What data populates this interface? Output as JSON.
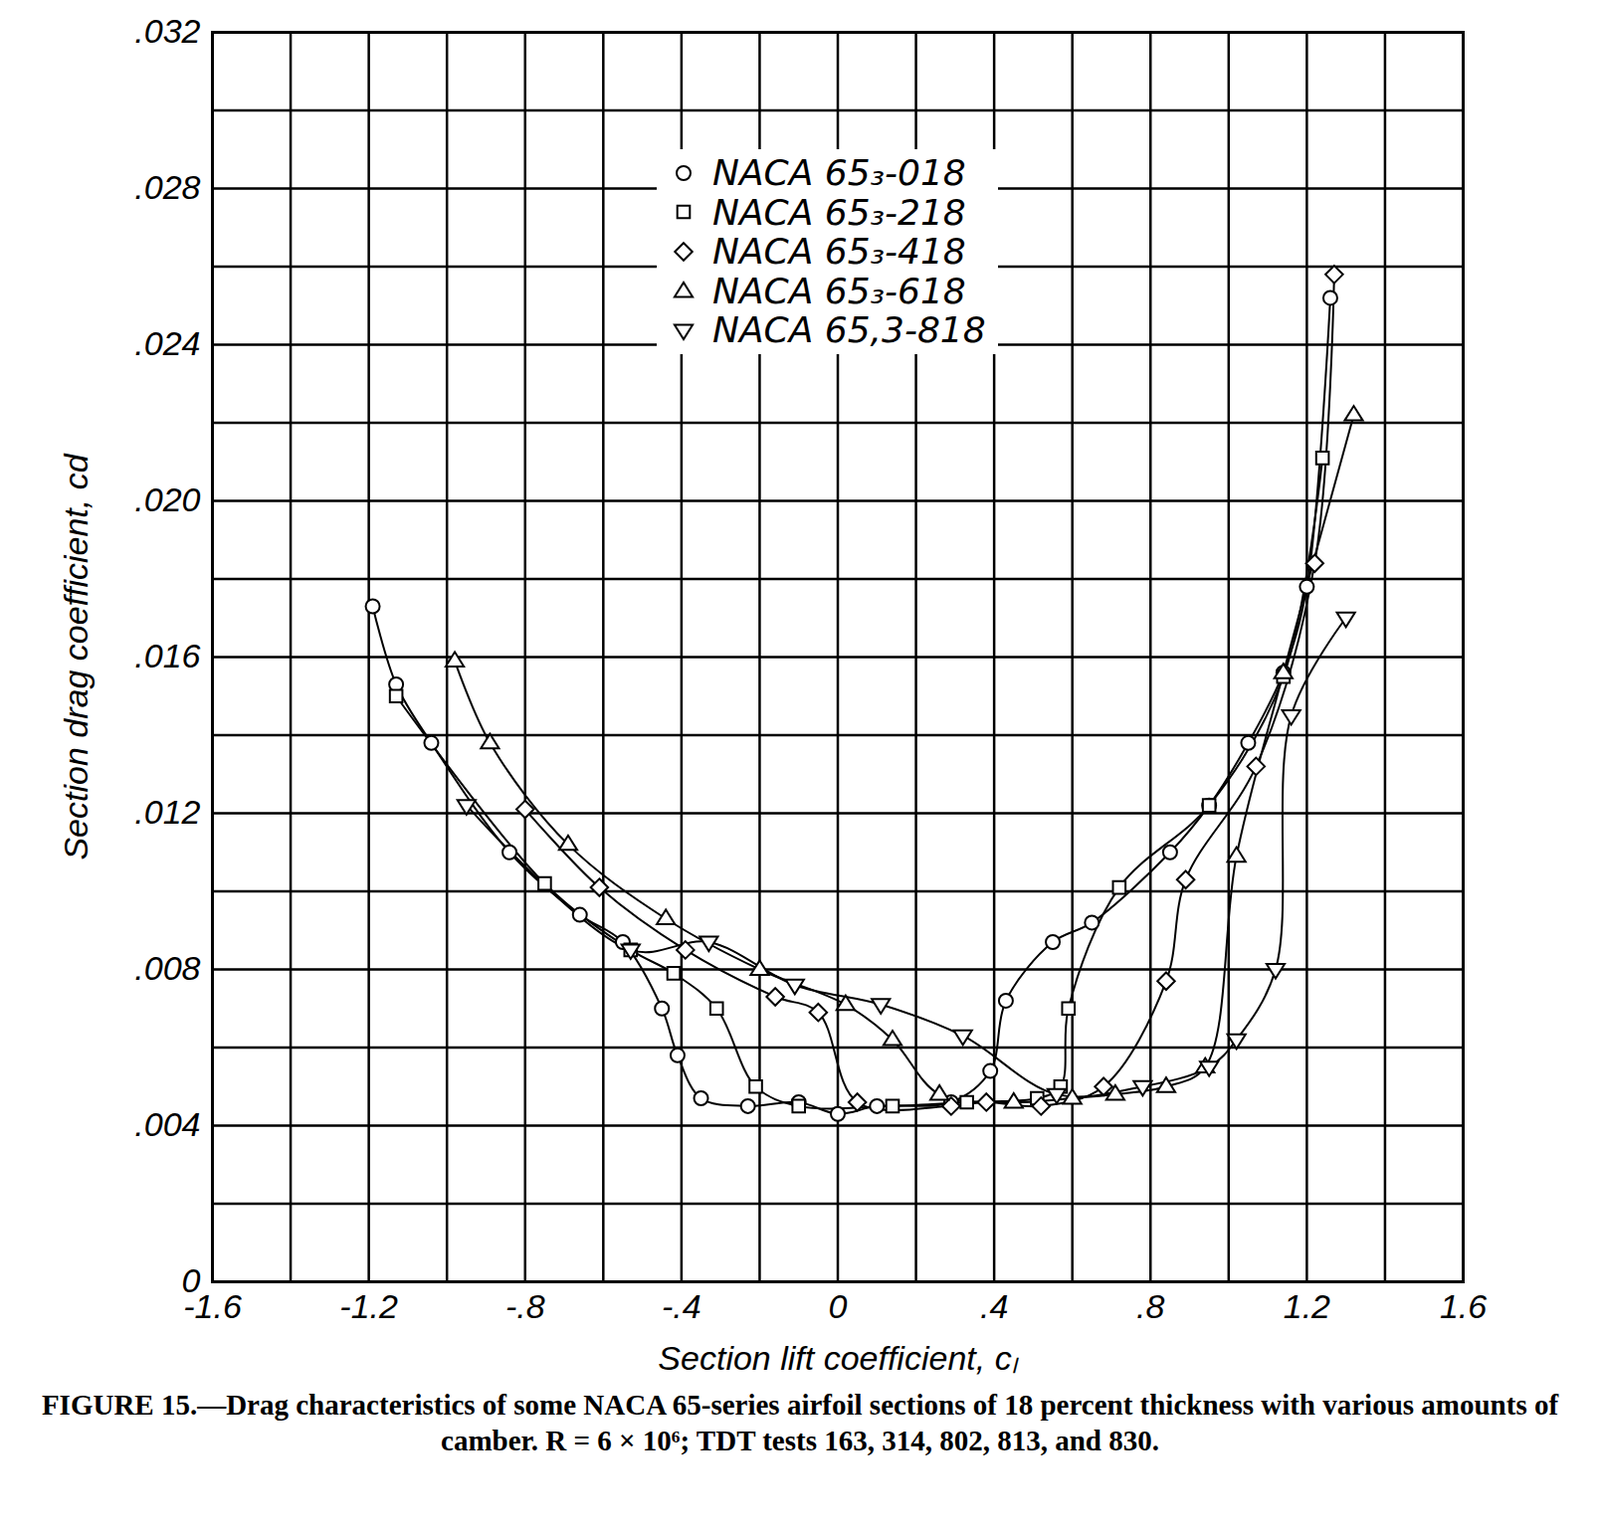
{
  "chart_data": {
    "type": "line",
    "title": "FIGURE 15.—Drag characteristics of some NACA 65-series airfoil sections of 18 percent thickness with various amounts of camber.  R = 6 × 10⁶; TDT tests 163, 314, 802, 813, and 830.",
    "xlabel": "Section lift coefficient, cₗ",
    "ylabel": "Section drag coefficient, cd",
    "xlim": [
      -1.6,
      1.6
    ],
    "xticks": [
      -1.6,
      -1.2,
      {
        "value": -0.8,
        "label": "-.8"
      },
      {
        "value": -0.4,
        "label": "-.4"
      },
      0,
      {
        "value": 0.4,
        "label": ".4"
      },
      {
        "value": 0.8,
        "label": ".8"
      },
      1.2,
      1.6
    ],
    "ylim": [
      0,
      0.032
    ],
    "yticks": [
      0,
      {
        "value": 0.004,
        "label": ".004"
      },
      {
        "value": 0.008,
        "label": ".008"
      },
      {
        "value": 0.012,
        "label": ".012"
      },
      {
        "value": 0.016,
        "label": ".016"
      },
      {
        "value": 0.02,
        "label": ".020"
      },
      {
        "value": 0.024,
        "label": ".024"
      },
      {
        "value": 0.028,
        "label": ".028"
      },
      {
        "value": 0.032,
        "label": ".032"
      }
    ],
    "grid": true,
    "legend": "top",
    "series": [
      {
        "name": "NACA 65₃-018",
        "color": "#000000",
        "marker": "circle",
        "x": [
          -1.19,
          -1.13,
          -1.04,
          -0.84,
          -0.66,
          -0.55,
          -0.45,
          -0.41,
          -0.35,
          -0.23,
          -0.1,
          0.0,
          0.1,
          0.29,
          0.39,
          0.43,
          0.55,
          0.65,
          0.85,
          0.95,
          1.05,
          1.14,
          1.2,
          1.26
        ],
        "values": [
          0.0173,
          0.0153,
          0.0138,
          0.011,
          0.0094,
          0.0087,
          0.007,
          0.0058,
          0.0047,
          0.0045,
          0.0046,
          0.0043,
          0.0045,
          0.0046,
          0.0054,
          0.0072,
          0.0087,
          0.0092,
          0.011,
          0.0122,
          0.0138,
          0.0156,
          0.0178,
          0.0252
        ]
      },
      {
        "name": "NACA 65₃-218",
        "color": "#000000",
        "marker": "square",
        "x": [
          -1.13,
          -0.75,
          -0.53,
          -0.42,
          -0.31,
          -0.21,
          -0.1,
          0.14,
          0.33,
          0.51,
          0.57,
          0.59,
          0.72,
          0.95,
          1.14,
          1.24
        ],
        "values": [
          0.015,
          0.0102,
          0.0085,
          0.0079,
          0.007,
          0.005,
          0.0045,
          0.0045,
          0.0046,
          0.0047,
          0.005,
          0.007,
          0.0101,
          0.0122,
          0.0155,
          0.0211
        ]
      },
      {
        "name": "NACA 65₃-418",
        "color": "#000000",
        "marker": "diamond",
        "x": [
          -0.8,
          -0.61,
          -0.39,
          -0.16,
          -0.05,
          0.05,
          0.29,
          0.38,
          0.52,
          0.68,
          0.84,
          0.89,
          1.07,
          1.22,
          1.27
        ],
        "values": [
          0.0121,
          0.0101,
          0.0085,
          0.0073,
          0.0069,
          0.0046,
          0.0045,
          0.0046,
          0.0045,
          0.005,
          0.0077,
          0.0103,
          0.0132,
          0.0184,
          0.0258
        ]
      },
      {
        "name": "NACA 65₃-618",
        "color": "#000000",
        "marker": "triangle",
        "x": [
          -0.98,
          -0.89,
          -0.69,
          -0.44,
          -0.2,
          0.02,
          0.14,
          0.26,
          0.45,
          0.6,
          0.71,
          0.84,
          0.94,
          1.02,
          1.14,
          1.32
        ],
        "values": [
          0.0159,
          0.0138,
          0.0112,
          0.0093,
          0.008,
          0.0071,
          0.0062,
          0.0048,
          0.0046,
          0.0047,
          0.0048,
          0.005,
          0.0055,
          0.0109,
          0.0156,
          0.0222
        ]
      },
      {
        "name": "NACA 65,3-818",
        "color": "#000000",
        "marker": "triangle-down",
        "x": [
          -0.95,
          -0.53,
          -0.33,
          -0.11,
          0.11,
          0.32,
          0.56,
          0.78,
          0.95,
          1.02,
          1.12,
          1.16,
          1.3
        ],
        "values": [
          0.0122,
          0.0085,
          0.0087,
          0.0076,
          0.0071,
          0.0063,
          0.0048,
          0.005,
          0.0055,
          0.0062,
          0.008,
          0.0145,
          0.017
        ]
      }
    ]
  }
}
